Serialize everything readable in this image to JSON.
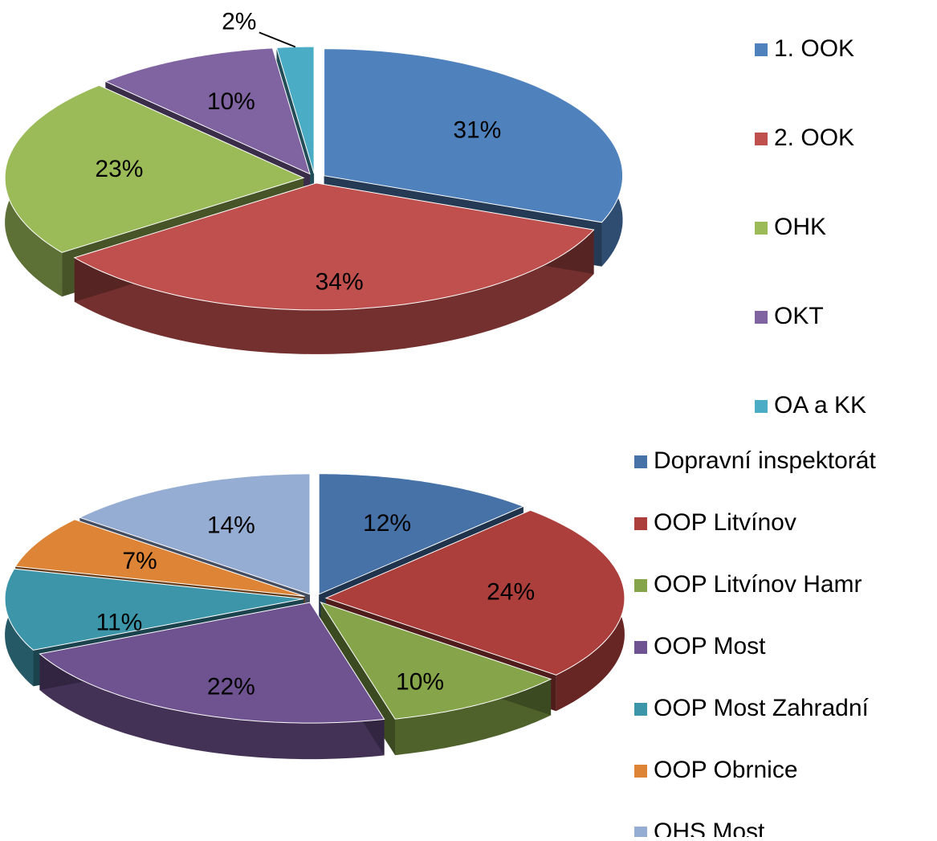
{
  "chart_data": [
    {
      "type": "pie",
      "categories": [
        "1. OOK",
        "2. OOK",
        "OHK",
        "OKT",
        "OA a KK"
      ],
      "values": [
        31,
        34,
        23,
        10,
        2
      ],
      "value_labels": [
        "31%",
        "34%",
        "23%",
        "10%",
        "2%"
      ],
      "colors": [
        "#4f81bd",
        "#c0504d",
        "#9bbb59",
        "#8064a2",
        "#4bacc6"
      ]
    },
    {
      "type": "pie",
      "categories": [
        "Dopravní inspektorát",
        "OOP Litvínov",
        "OOP Litvínov Hamr",
        "OOP Most",
        "OOP Most Zahradní",
        "OOP Obrnice",
        "OHS Most"
      ],
      "values": [
        12,
        24,
        10,
        22,
        11,
        7,
        14
      ],
      "value_labels": [
        "12%",
        "24%",
        "10%",
        "22%",
        "11%",
        "7%",
        "14%"
      ],
      "colors": [
        "#4672a8",
        "#ac3f3c",
        "#86a449",
        "#6f5390",
        "#3d95aa",
        "#dd8436",
        "#95acd3"
      ]
    }
  ]
}
